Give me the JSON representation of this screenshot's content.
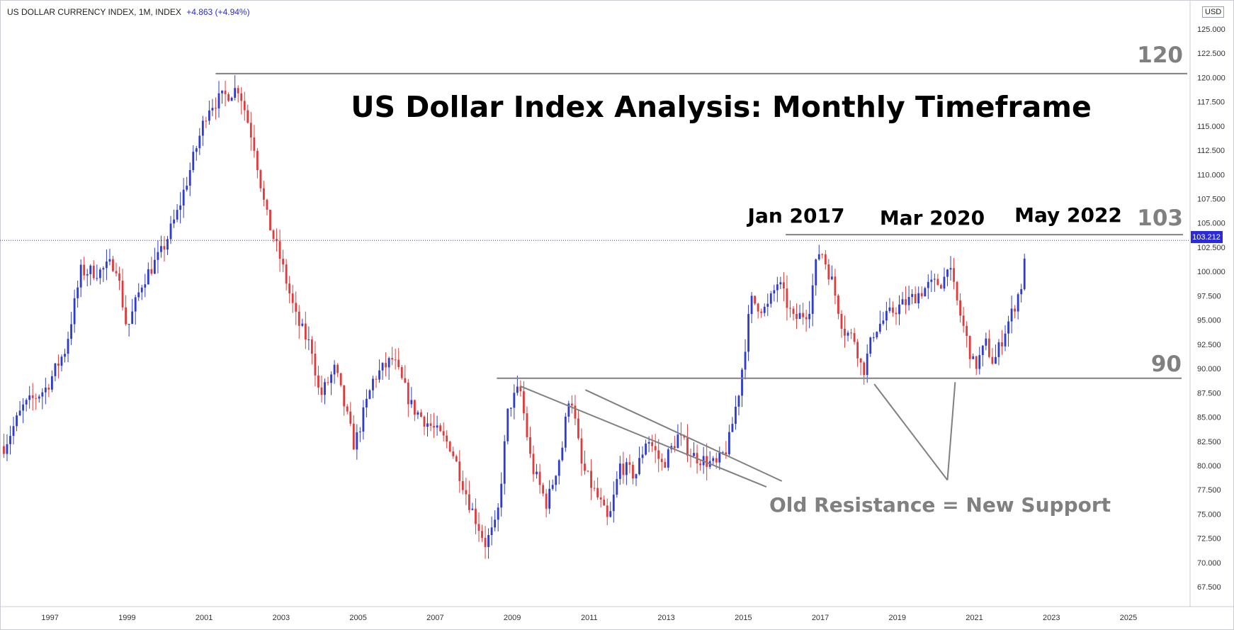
{
  "header": {
    "symbol_line": "US DOLLAR CURRENCY INDEX, 1M, INDEX",
    "change": "+4.863 (+4.94%)",
    "currency": "USD"
  },
  "colors": {
    "up": "#2e3bd1",
    "down": "#e23a3a",
    "level_line": "#808080",
    "price_line": "#3b3bd6",
    "price_tag_bg": "#2b2bd6"
  },
  "chart_data": {
    "type": "candlestick",
    "title": "US Dollar Index Analysis: Monthly Timeframe",
    "xlim": [
      1995.7,
      2026.6
    ],
    "ylim": [
      65.9,
      125.8
    ],
    "y_ticks": [
      "67.500",
      "70.000",
      "72.500",
      "75.000",
      "77.500",
      "80.000",
      "82.500",
      "85.000",
      "87.500",
      "90.000",
      "92.500",
      "95.000",
      "97.500",
      "100.000",
      "102.500",
      "105.000",
      "107.500",
      "110.000",
      "112.500",
      "115.000",
      "117.500",
      "120.000",
      "122.500",
      "125.000"
    ],
    "x_ticks": [
      "1997",
      "1999",
      "2001",
      "2003",
      "2005",
      "2007",
      "2009",
      "2011",
      "2013",
      "2015",
      "2017",
      "2019",
      "2021",
      "2023",
      "2025"
    ],
    "last_price": "103.212",
    "anchors": [
      [
        1995.8,
        82
      ],
      [
        1996.3,
        86
      ],
      [
        1996.9,
        88
      ],
      [
        1997.4,
        92
      ],
      [
        1997.8,
        100
      ],
      [
        1998.3,
        100
      ],
      [
        1998.7,
        101
      ],
      [
        1999.0,
        94
      ],
      [
        1999.4,
        99
      ],
      [
        1999.9,
        102
      ],
      [
        2000.3,
        106
      ],
      [
        2000.6,
        110
      ],
      [
        2001.1,
        117
      ],
      [
        2001.5,
        118
      ],
      [
        2001.9,
        119
      ],
      [
        2002.3,
        113
      ],
      [
        2002.6,
        106
      ],
      [
        2003.0,
        101
      ],
      [
        2003.4,
        95
      ],
      [
        2003.8,
        92
      ],
      [
        2004.0,
        87
      ],
      [
        2004.4,
        90
      ],
      [
        2004.9,
        82
      ],
      [
        2005.4,
        89
      ],
      [
        2005.9,
        91
      ],
      [
        2006.4,
        86
      ],
      [
        2006.9,
        84
      ],
      [
        2007.4,
        82
      ],
      [
        2007.9,
        76
      ],
      [
        2008.3,
        72
      ],
      [
        2008.6,
        74
      ],
      [
        2008.9,
        86
      ],
      [
        2009.2,
        88
      ],
      [
        2009.5,
        80
      ],
      [
        2009.9,
        76
      ],
      [
        2010.3,
        82
      ],
      [
        2010.5,
        88
      ],
      [
        2010.8,
        80
      ],
      [
        2011.3,
        76
      ],
      [
        2011.5,
        74
      ],
      [
        2011.8,
        80
      ],
      [
        2012.2,
        79
      ],
      [
        2012.5,
        83
      ],
      [
        2012.9,
        80
      ],
      [
        2013.3,
        83
      ],
      [
        2013.7,
        81
      ],
      [
        2014.3,
        80
      ],
      [
        2014.6,
        82
      ],
      [
        2014.9,
        88
      ],
      [
        2015.2,
        97
      ],
      [
        2015.6,
        96
      ],
      [
        2015.9,
        99
      ],
      [
        2016.3,
        95
      ],
      [
        2016.7,
        96
      ],
      [
        2016.9,
        101
      ],
      [
        2017.0,
        102.5
      ],
      [
        2017.3,
        99
      ],
      [
        2017.6,
        94
      ],
      [
        2017.9,
        93
      ],
      [
        2018.1,
        89.5
      ],
      [
        2018.4,
        94
      ],
      [
        2018.9,
        96
      ],
      [
        2019.3,
        97
      ],
      [
        2019.8,
        98.5
      ],
      [
        2020.2,
        99
      ],
      [
        2020.3,
        101
      ],
      [
        2020.6,
        96
      ],
      [
        2020.8,
        93
      ],
      [
        2021.0,
        90
      ],
      [
        2021.3,
        92.5
      ],
      [
        2021.5,
        90.5
      ],
      [
        2021.8,
        94
      ],
      [
        2022.0,
        96
      ],
      [
        2022.25,
        99
      ],
      [
        2022.34,
        103.2
      ]
    ],
    "levels": [
      {
        "label": "120",
        "value": 120.4
      },
      {
        "label": "103",
        "value": 103.8
      },
      {
        "label": "90",
        "value": 89.0
      }
    ],
    "annotations": {
      "peaks": [
        "Jan 2017",
        "Mar 2020",
        "May 2022"
      ],
      "note": "Old Resistance = New Support"
    }
  }
}
